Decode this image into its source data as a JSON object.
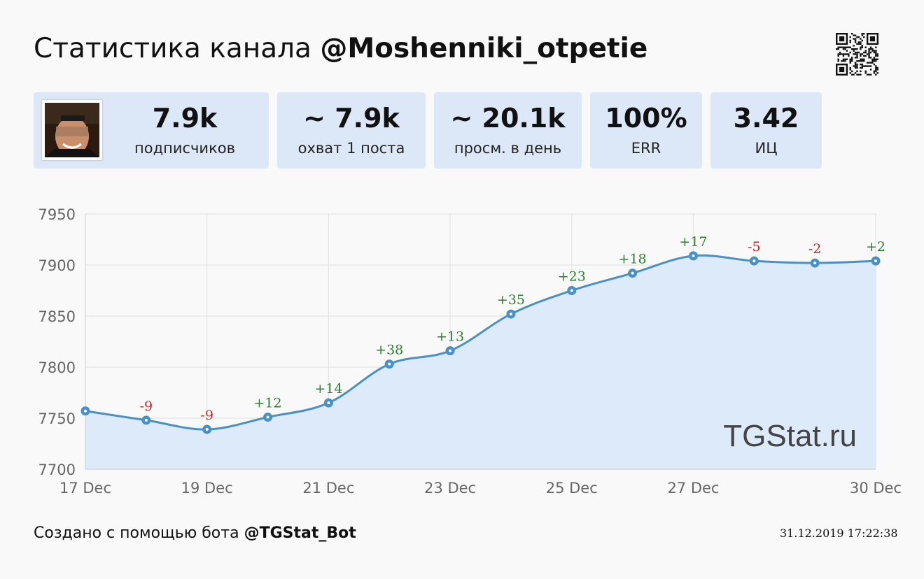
{
  "header": {
    "title_prefix": "Статистика канала",
    "channel": "@Moshenniki_otpetie"
  },
  "icons": {
    "qr": "qr-code-icon",
    "avatar": "channel-avatar"
  },
  "stats": [
    {
      "value": "7.9k",
      "label": "подписчиков"
    },
    {
      "value": "~ 7.9k",
      "label": "охват 1 поста"
    },
    {
      "value": "~ 20.1k",
      "label": "просм. в день"
    },
    {
      "value": "100%",
      "label": "ERR"
    },
    {
      "value": "3.42",
      "label": "ИЦ"
    }
  ],
  "chart_data": {
    "type": "area",
    "title": "",
    "xlabel": "",
    "ylabel": "",
    "x_tick_labels": [
      "17 Dec",
      "19 Dec",
      "21 Dec",
      "23 Dec",
      "25 Dec",
      "27 Dec",
      "30 Dec"
    ],
    "x_tick_days": [
      17,
      19,
      21,
      23,
      25,
      27,
      30
    ],
    "y_ticks": [
      7700,
      7750,
      7800,
      7850,
      7900,
      7950
    ],
    "xlim": [
      17,
      30
    ],
    "ylim": [
      7700,
      7950
    ],
    "grid": true,
    "watermark": "TGStat.ru",
    "colors": {
      "line": "#4a90c2",
      "fill": "#dceafa",
      "up": "#2e7d32",
      "down": "#c62828"
    },
    "series": [
      {
        "x": [
          17,
          18,
          19,
          20,
          21,
          22,
          23,
          24,
          25,
          26,
          27,
          28,
          29,
          30
        ],
        "values": [
          7757,
          7748,
          7739,
          7751,
          7765,
          7803,
          7816,
          7852,
          7875,
          7892,
          7909,
          7904,
          7902,
          7904
        ],
        "labels": [
          "",
          "-9",
          "-9",
          "+12",
          "+14",
          "+38",
          "+13",
          "+35",
          "+23",
          "+18",
          "+17",
          "-5",
          "-2",
          "+2"
        ]
      }
    ]
  },
  "footer": {
    "created_prefix": "Создано с помощью бота",
    "bot": "@TGStat_Bot",
    "timestamp": "31.12.2019 17:22:38"
  }
}
